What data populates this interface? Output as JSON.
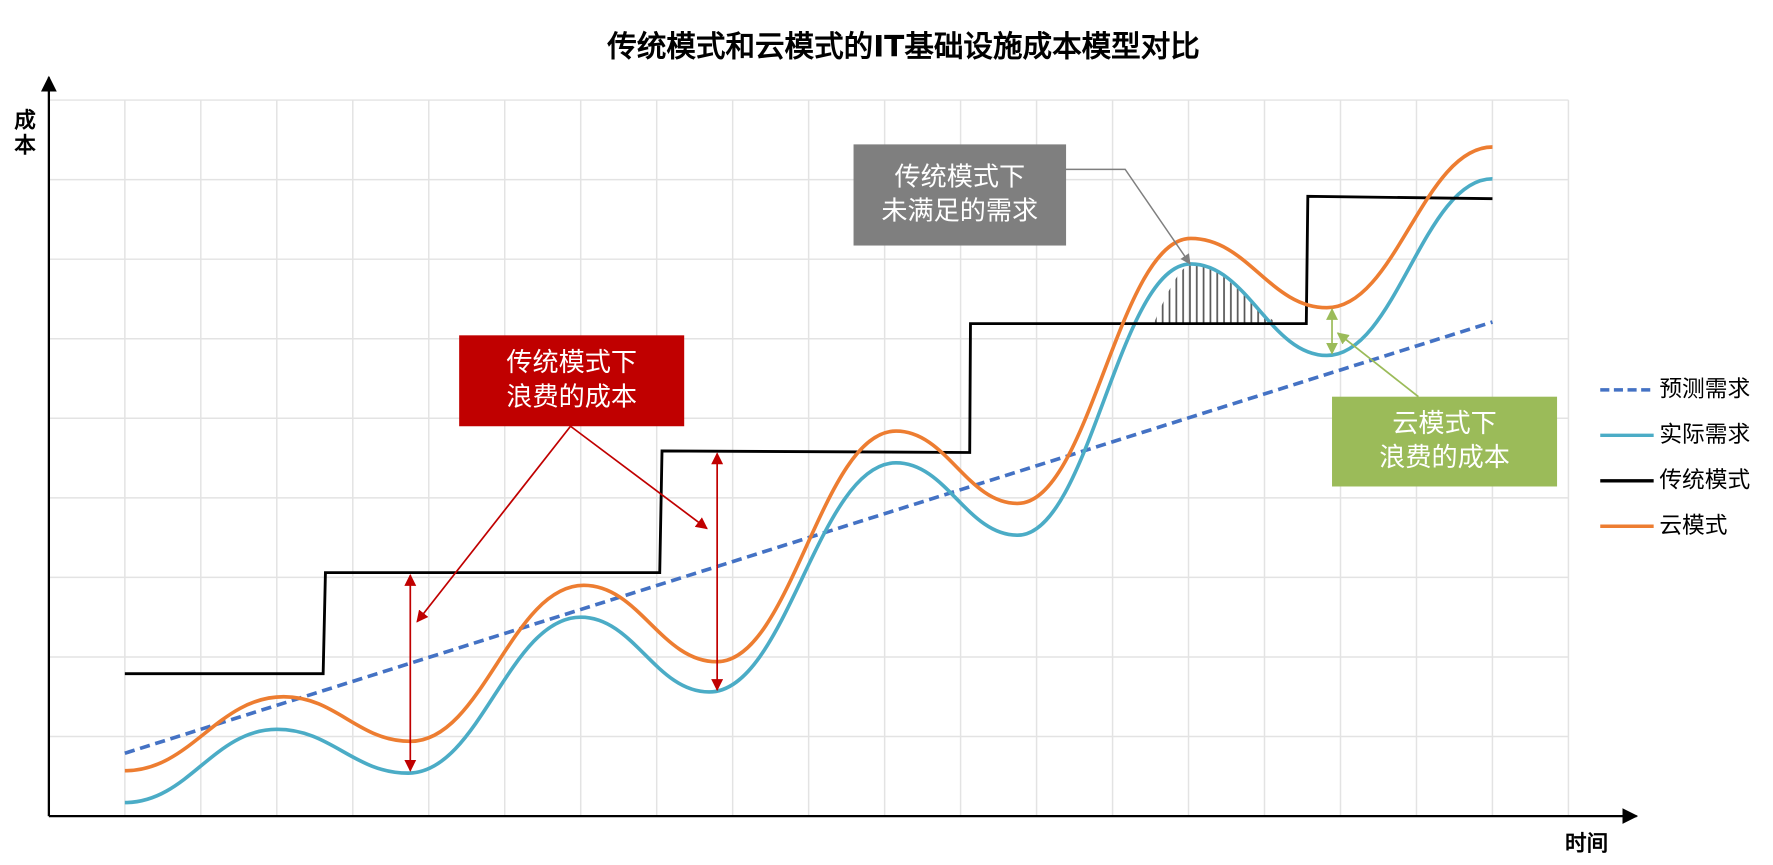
{
  "chart_data": {
    "type": "line",
    "title": "传统模式和云模式的IT基础设施成本模型对比",
    "y_label": "成本",
    "x_label": "时间",
    "xlim": [
      0,
      20
    ],
    "ylim": [
      0,
      9
    ],
    "xticks": [
      0,
      1,
      2,
      3,
      4,
      5,
      6,
      7,
      8,
      9,
      10,
      11,
      12,
      13,
      14,
      15,
      16,
      17,
      18,
      19,
      20
    ],
    "yticks": [
      0,
      1,
      2,
      3,
      4,
      5,
      6,
      7,
      8,
      9
    ],
    "grid": true,
    "series": [
      {
        "name": "预测需求",
        "color": "#4472c4",
        "style": "dashed",
        "x": [
          1,
          19
        ],
        "values": [
          0.79,
          6.21
        ]
      },
      {
        "name": "实际需求",
        "color": "#4bacc6",
        "style": "smooth",
        "x": [
          1,
          3,
          4.73,
          7,
          8.69,
          11.15,
          12.75,
          15.03,
          16.82,
          19
        ],
        "values": [
          0.17,
          1.09,
          0.54,
          2.5,
          1.56,
          4.44,
          3.53,
          6.94,
          5.79,
          8.01
        ]
      },
      {
        "name": "传统模式",
        "color": "#000000",
        "style": "straight",
        "x": [
          1,
          3.61,
          3.64,
          8.04,
          8.07,
          12.12,
          12.13,
          16.55,
          16.57,
          19
        ],
        "values": [
          1.79,
          1.79,
          3.06,
          3.06,
          4.59,
          4.57,
          6.19,
          6.19,
          7.79,
          7.76
        ]
      },
      {
        "name": "云模式",
        "color": "#ed7d31",
        "style": "smooth",
        "x": [
          1,
          3.09,
          4.76,
          7.04,
          8.79,
          11.15,
          12.75,
          15.03,
          16.82,
          19
        ],
        "values": [
          0.57,
          1.5,
          0.94,
          2.9,
          1.94,
          4.84,
          3.93,
          7.26,
          6.39,
          8.41
        ]
      }
    ],
    "annotations": [
      {
        "lines": [
          "传统模式下",
          "未满足的需求"
        ],
        "color": "#7f7f7f"
      },
      {
        "lines": [
          "传统模式下",
          "浪费的成本"
        ],
        "color": "#c00000"
      },
      {
        "lines": [
          "云模式下",
          "浪费的成本"
        ],
        "color": "#9bbb59"
      }
    ]
  }
}
